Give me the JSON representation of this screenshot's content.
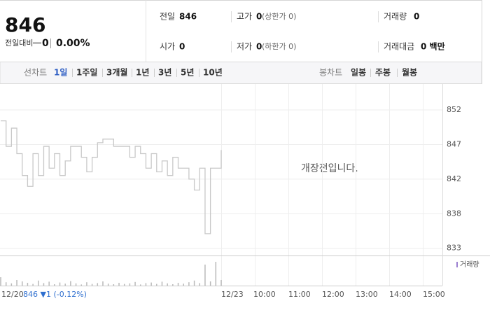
{
  "header": {
    "price": "846",
    "change_label": "전일대비",
    "change": "0",
    "change_rate": "0.00%",
    "fields": [
      {
        "label": "전일",
        "value": "846"
      },
      {
        "label": "고가",
        "value": "0",
        "note": "(상한가 0)"
      },
      {
        "label": "거래량",
        "value": "0"
      },
      {
        "label": "시가",
        "value": "0"
      },
      {
        "label": "저가",
        "value": "0",
        "note": "(하한가 0)"
      },
      {
        "label": "거래대금",
        "value": "0 백만"
      }
    ]
  },
  "tabs": {
    "line_label": "선차트",
    "line_items": [
      "1일",
      "1주일",
      "3개월",
      "1년",
      "3년",
      "5년",
      "10년"
    ],
    "selected": 0,
    "candle_label": "봉차트",
    "candle_items": [
      "일봉",
      "주봉",
      "월봉"
    ]
  },
  "chart_data": {
    "type": "line",
    "annotation": "개장전입니다.",
    "prev_close_label": "846 ▼1 (-0.12%)",
    "x_labels": [
      "12/20",
      "12/23",
      "10:00",
      "11:00",
      "12:00",
      "13:00",
      "14:00",
      "15:00"
    ],
    "ylim": [
      832.3,
      854.6
    ],
    "yticks": [
      {
        "value": 852,
        "label": "852"
      },
      {
        "value": 847.25,
        "label": "847"
      },
      {
        "value": 842.5,
        "label": "842"
      },
      {
        "value": 837.75,
        "label": "838"
      },
      {
        "value": 833,
        "label": "833"
      }
    ],
    "y2lim": [
      0,
      100
    ],
    "grid": true,
    "series": [
      {
        "color": "#c8c8c8",
        "values": [
          850.5,
          847,
          849.5,
          846,
          843,
          841.5,
          846,
          843,
          847,
          844,
          846,
          843,
          845,
          847,
          847,
          845.5,
          843.5,
          845.5,
          847.5,
          848,
          848,
          847,
          847,
          847,
          845.5,
          847,
          846,
          844,
          846,
          843.5,
          845,
          843,
          845.5,
          844,
          844,
          842.5,
          841,
          844,
          835,
          844,
          844,
          846.5
        ]
      },
      {
        "name": "거래량",
        "color": "#b9b9b9",
        "axis": "y2",
        "values": [
          30,
          12,
          8,
          20,
          15,
          10,
          6,
          18,
          9,
          14,
          5,
          11,
          7,
          16,
          8,
          4,
          12,
          6,
          9,
          15,
          7,
          5,
          10,
          6,
          8,
          13,
          4,
          9,
          11,
          6,
          14,
          8,
          5,
          10,
          7,
          12,
          18,
          9,
          75,
          15,
          85,
          20
        ]
      }
    ]
  }
}
